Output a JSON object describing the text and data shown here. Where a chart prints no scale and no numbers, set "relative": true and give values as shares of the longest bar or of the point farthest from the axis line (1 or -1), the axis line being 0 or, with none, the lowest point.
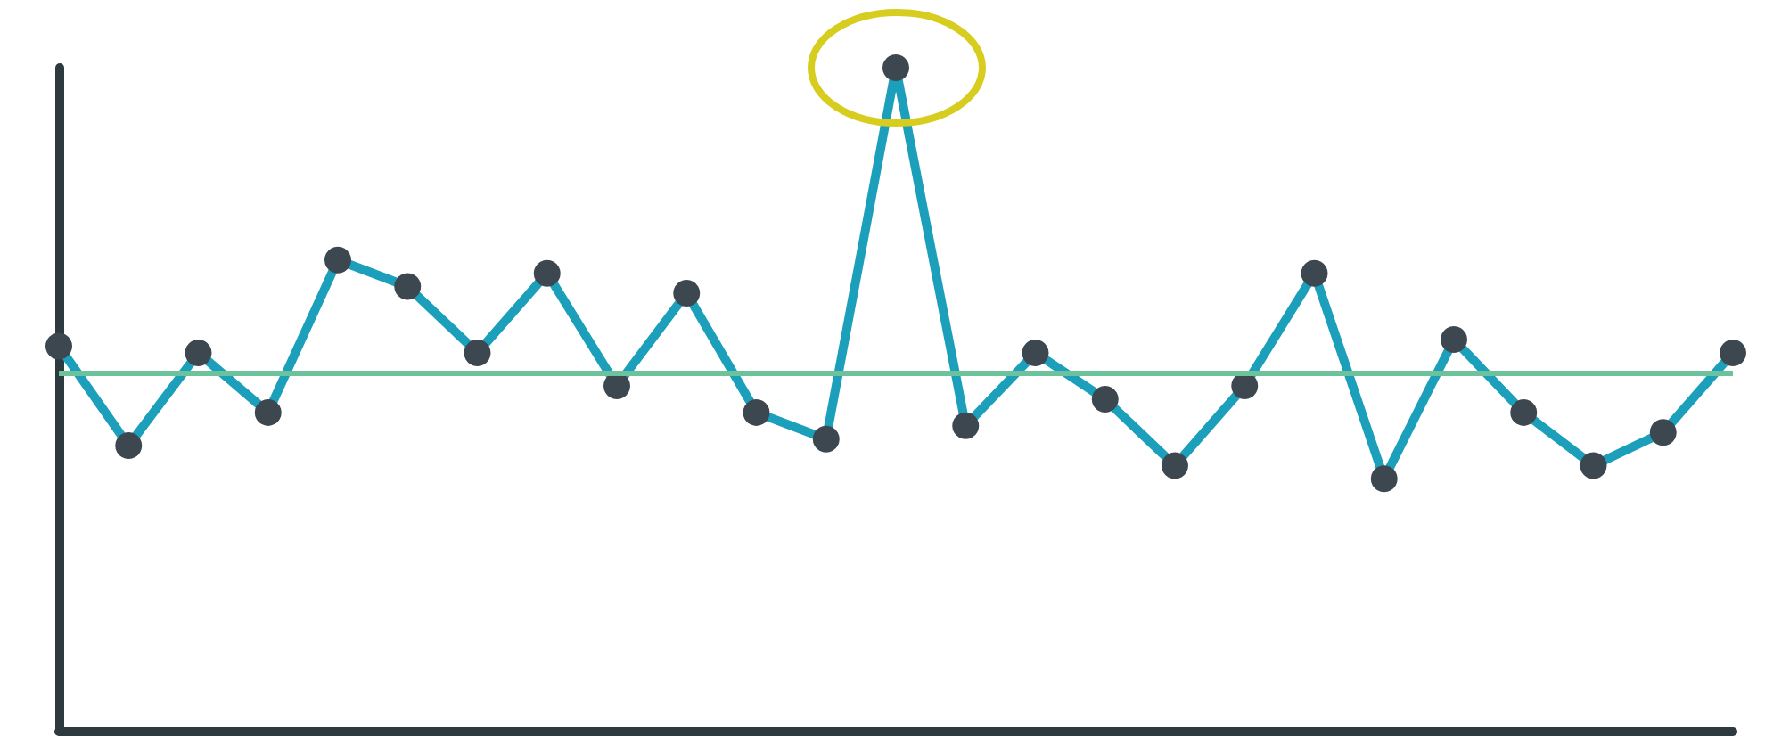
{
  "chart_data": {
    "type": "line",
    "relative": true,
    "grid": false,
    "marker": "circle",
    "line_style": "solid",
    "categories": [
      null,
      null,
      null,
      null,
      null,
      null,
      null,
      null,
      null,
      null,
      null,
      null,
      null,
      null,
      null,
      null,
      null,
      null,
      null,
      null,
      null,
      null,
      null,
      null,
      null
    ],
    "series": [
      {
        "color": "#1c9fba",
        "values": [
          0.58,
          0.43,
          0.57,
          0.48,
          0.71,
          0.67,
          0.57,
          0.69,
          0.52,
          0.66,
          0.48,
          0.44,
          1,
          0.46,
          0.57,
          0.5,
          0.4,
          0.52,
          0.69,
          0.38,
          0.59,
          0.48,
          0.4,
          0.45,
          0.57
        ]
      }
    ],
    "ref_lines": [
      {
        "axis": "y",
        "value": 0.54,
        "color": "#6cc29a"
      }
    ]
  }
}
